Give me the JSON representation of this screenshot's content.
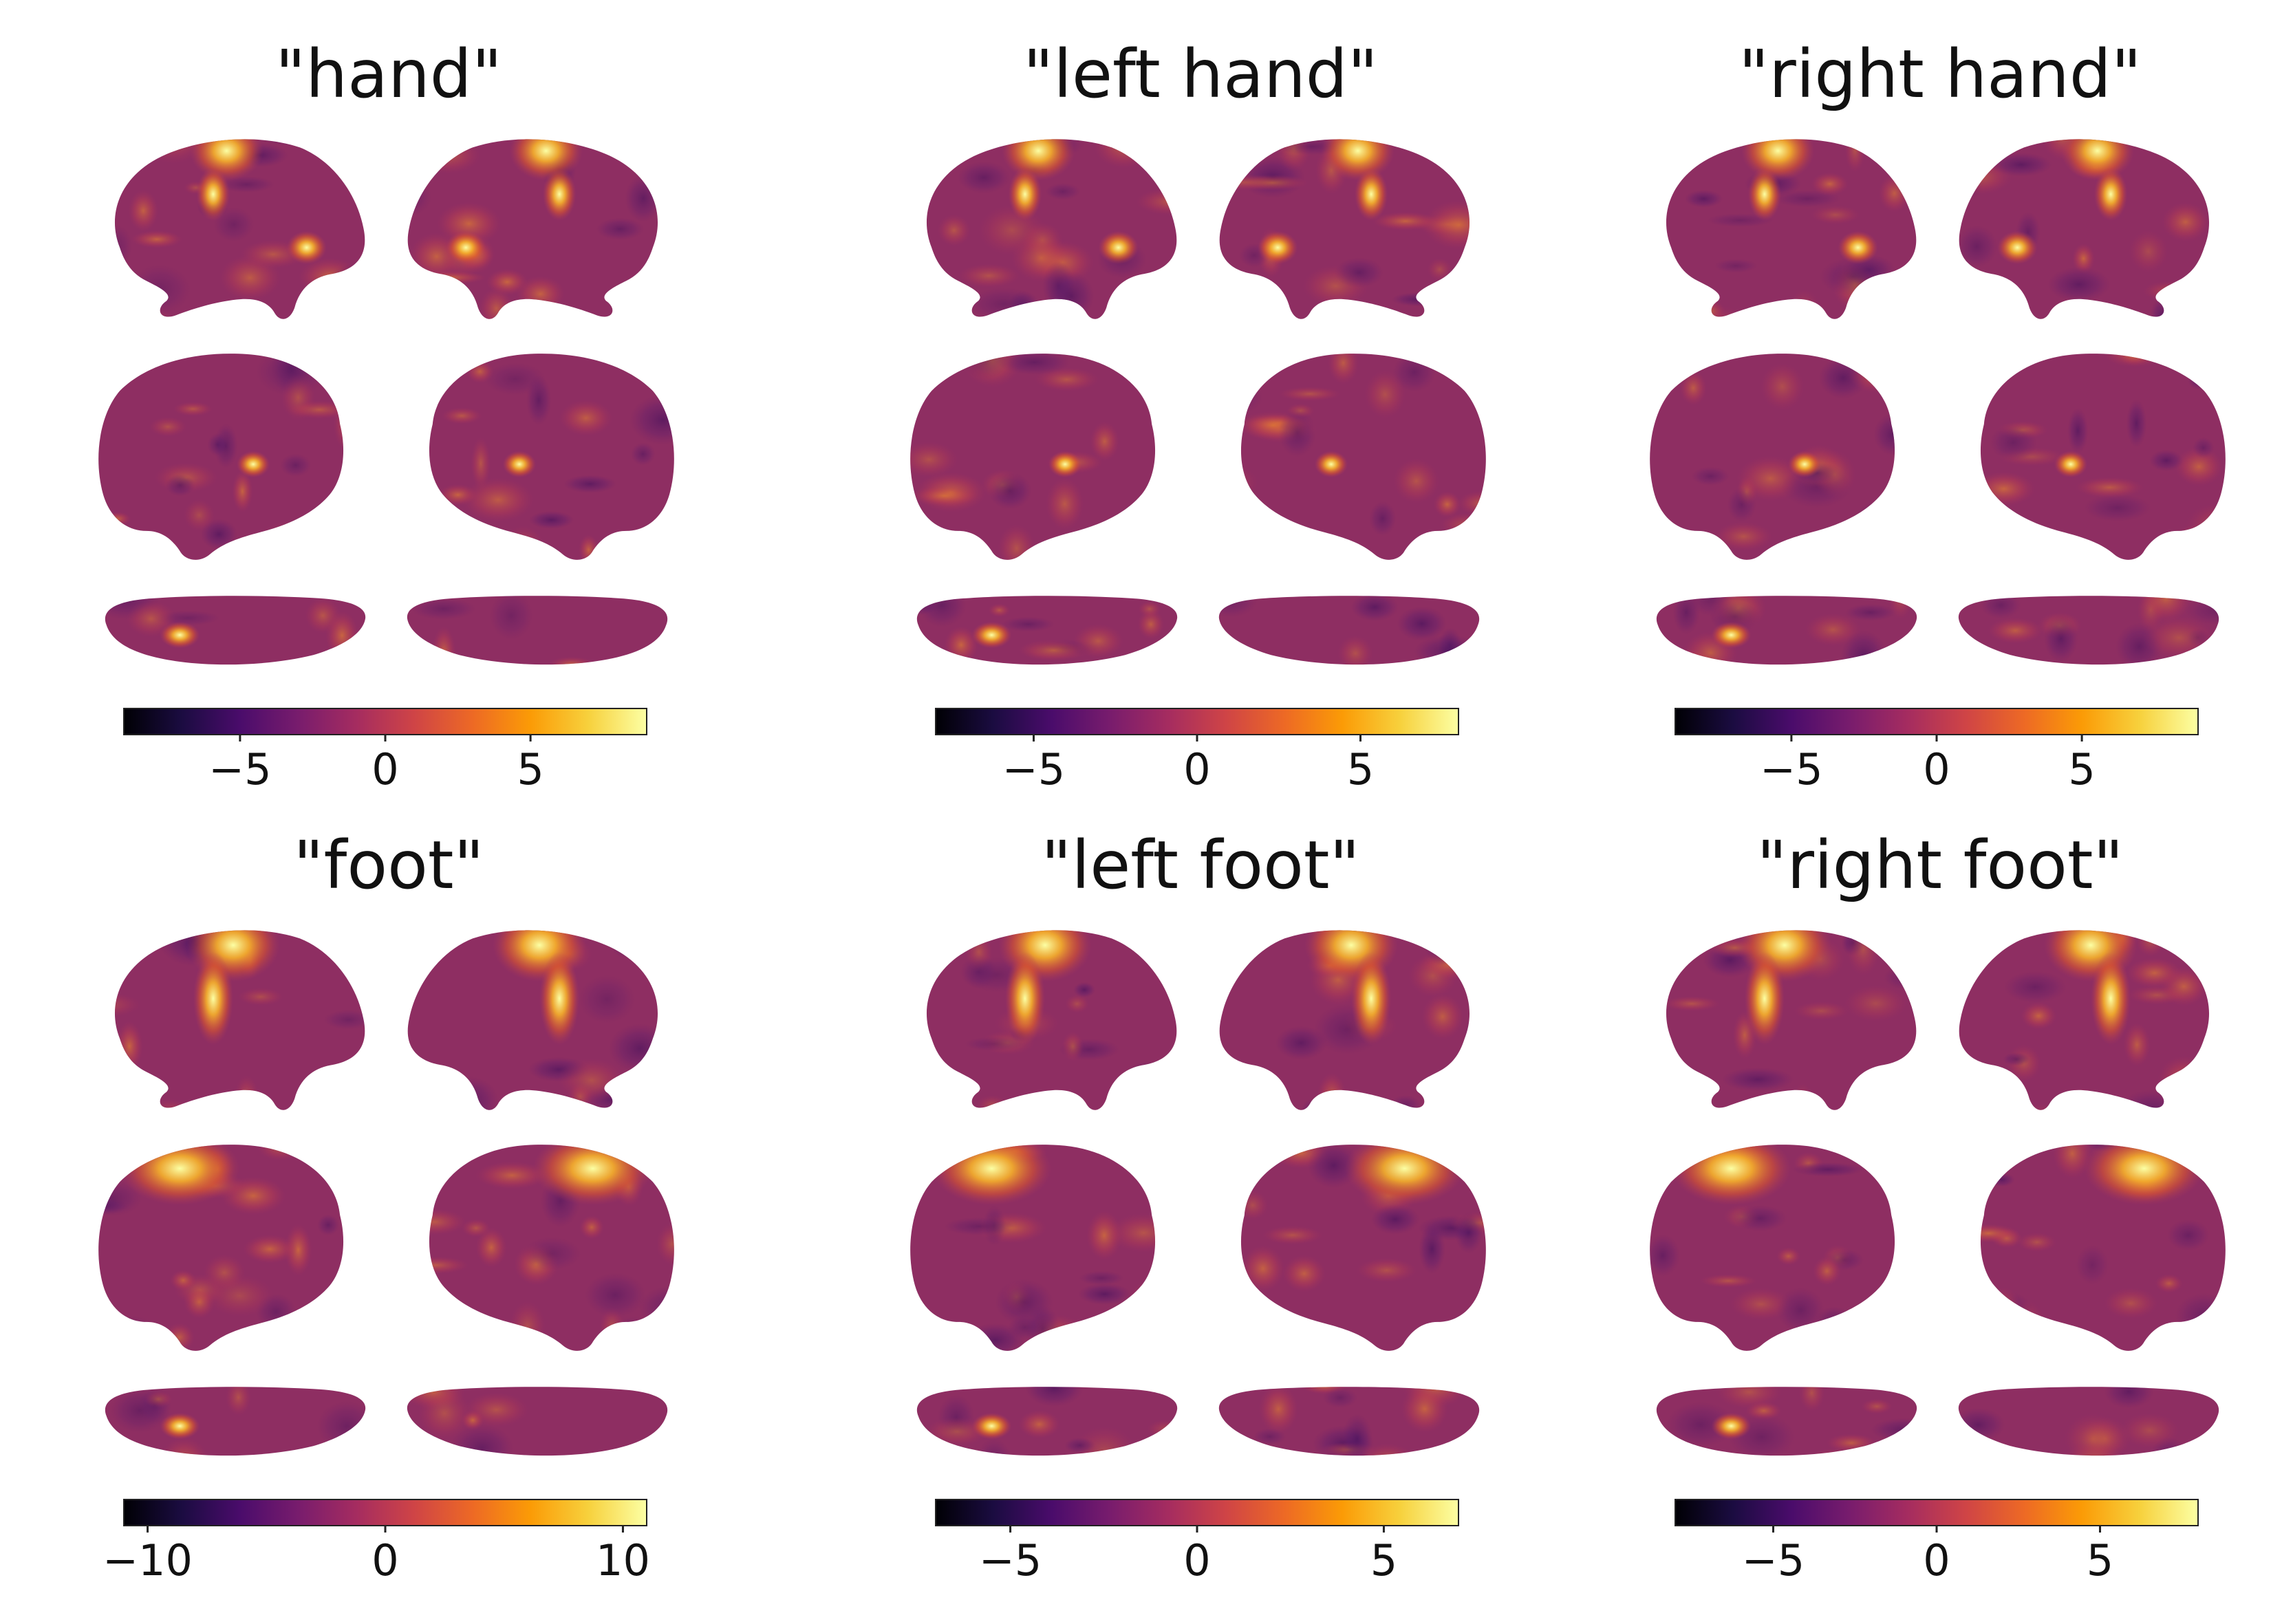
{
  "figure": {
    "colormap": {
      "name": "inferno",
      "stops": [
        "#000004",
        "#1b0c41",
        "#4a0c6b",
        "#781c6d",
        "#a52c60",
        "#cf4446",
        "#ed6925",
        "#fb9b06",
        "#f7d13d",
        "#fcffa4"
      ]
    },
    "brain_base_color": "#8e2e62",
    "panels": [
      {
        "id": "hand",
        "title": "\"hand\"",
        "colorbar": {
          "ticks": [
            {
              "value": -5,
              "label": "−5"
            },
            {
              "value": 0,
              "label": "0"
            },
            {
              "value": 5,
              "label": "5"
            }
          ],
          "vmin": -9,
          "vmax": 9
        }
      },
      {
        "id": "left-hand",
        "title": "\"left hand\"",
        "colorbar": {
          "ticks": [
            {
              "value": -5,
              "label": "−5"
            },
            {
              "value": 0,
              "label": "0"
            },
            {
              "value": 5,
              "label": "5"
            }
          ],
          "vmin": -8,
          "vmax": 8
        }
      },
      {
        "id": "right-hand",
        "title": "\"right hand\"",
        "colorbar": {
          "ticks": [
            {
              "value": -5,
              "label": "−5"
            },
            {
              "value": 0,
              "label": "0"
            },
            {
              "value": 5,
              "label": "5"
            }
          ],
          "vmin": -9,
          "vmax": 9
        }
      },
      {
        "id": "foot",
        "title": "\"foot\"",
        "colorbar": {
          "ticks": [
            {
              "value": -10,
              "label": "−10"
            },
            {
              "value": 0,
              "label": "0"
            },
            {
              "value": 10,
              "label": "10"
            }
          ],
          "vmin": -11,
          "vmax": 11
        }
      },
      {
        "id": "left-foot",
        "title": "\"left foot\"",
        "colorbar": {
          "ticks": [
            {
              "value": -5,
              "label": "−5"
            },
            {
              "value": 0,
              "label": "0"
            },
            {
              "value": 5,
              "label": "5"
            }
          ],
          "vmin": -7,
          "vmax": 7
        }
      },
      {
        "id": "right-foot",
        "title": "\"right foot\"",
        "colorbar": {
          "ticks": [
            {
              "value": -5,
              "label": "−5"
            },
            {
              "value": 0,
              "label": "0"
            },
            {
              "value": 5,
              "label": "5"
            }
          ],
          "vmin": -8,
          "vmax": 8
        }
      }
    ]
  }
}
